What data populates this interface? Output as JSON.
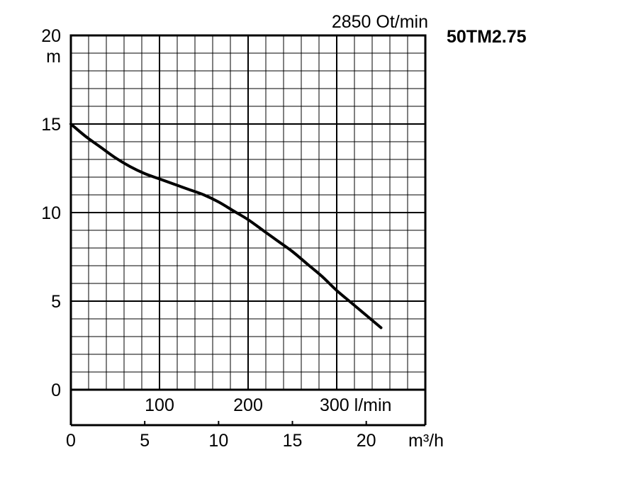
{
  "speed_label": "2850 Ot/min",
  "model": "50TM2.75",
  "chart_data": {
    "type": "line",
    "title": "50TM2.75",
    "subtitle": "2850 Ot/min",
    "ylabel": "m",
    "ylim": [
      0,
      20
    ],
    "y_ticks": [
      "0",
      "5",
      "10",
      "15",
      "20"
    ],
    "y_ticks_values": [
      0,
      5,
      10,
      15,
      20
    ],
    "x_unit": "m³/h",
    "xlim": [
      0,
      24
    ],
    "x_ticks": [
      "0",
      "5",
      "10",
      "15",
      "20"
    ],
    "x_ticks_values": [
      0,
      5,
      10,
      15,
      20
    ],
    "x2_unit": "l/min",
    "x2_ticks": [
      "100",
      "200",
      "300 l/min"
    ],
    "x2_ticks_values": [
      100,
      200,
      300
    ],
    "grid": true,
    "series": [
      {
        "x": [
          0,
          1,
          2,
          3,
          4,
          5,
          6,
          7,
          8,
          9,
          10,
          11,
          12,
          13,
          14,
          15,
          16,
          17,
          18,
          19,
          20,
          21
        ],
        "y": [
          15,
          14.3,
          13.7,
          13.1,
          12.6,
          12.2,
          11.9,
          11.6,
          11.3,
          11.0,
          10.6,
          10.1,
          9.6,
          9.0,
          8.4,
          7.8,
          7.1,
          6.4,
          5.6,
          4.9,
          4.2,
          3.5
        ]
      }
    ]
  }
}
